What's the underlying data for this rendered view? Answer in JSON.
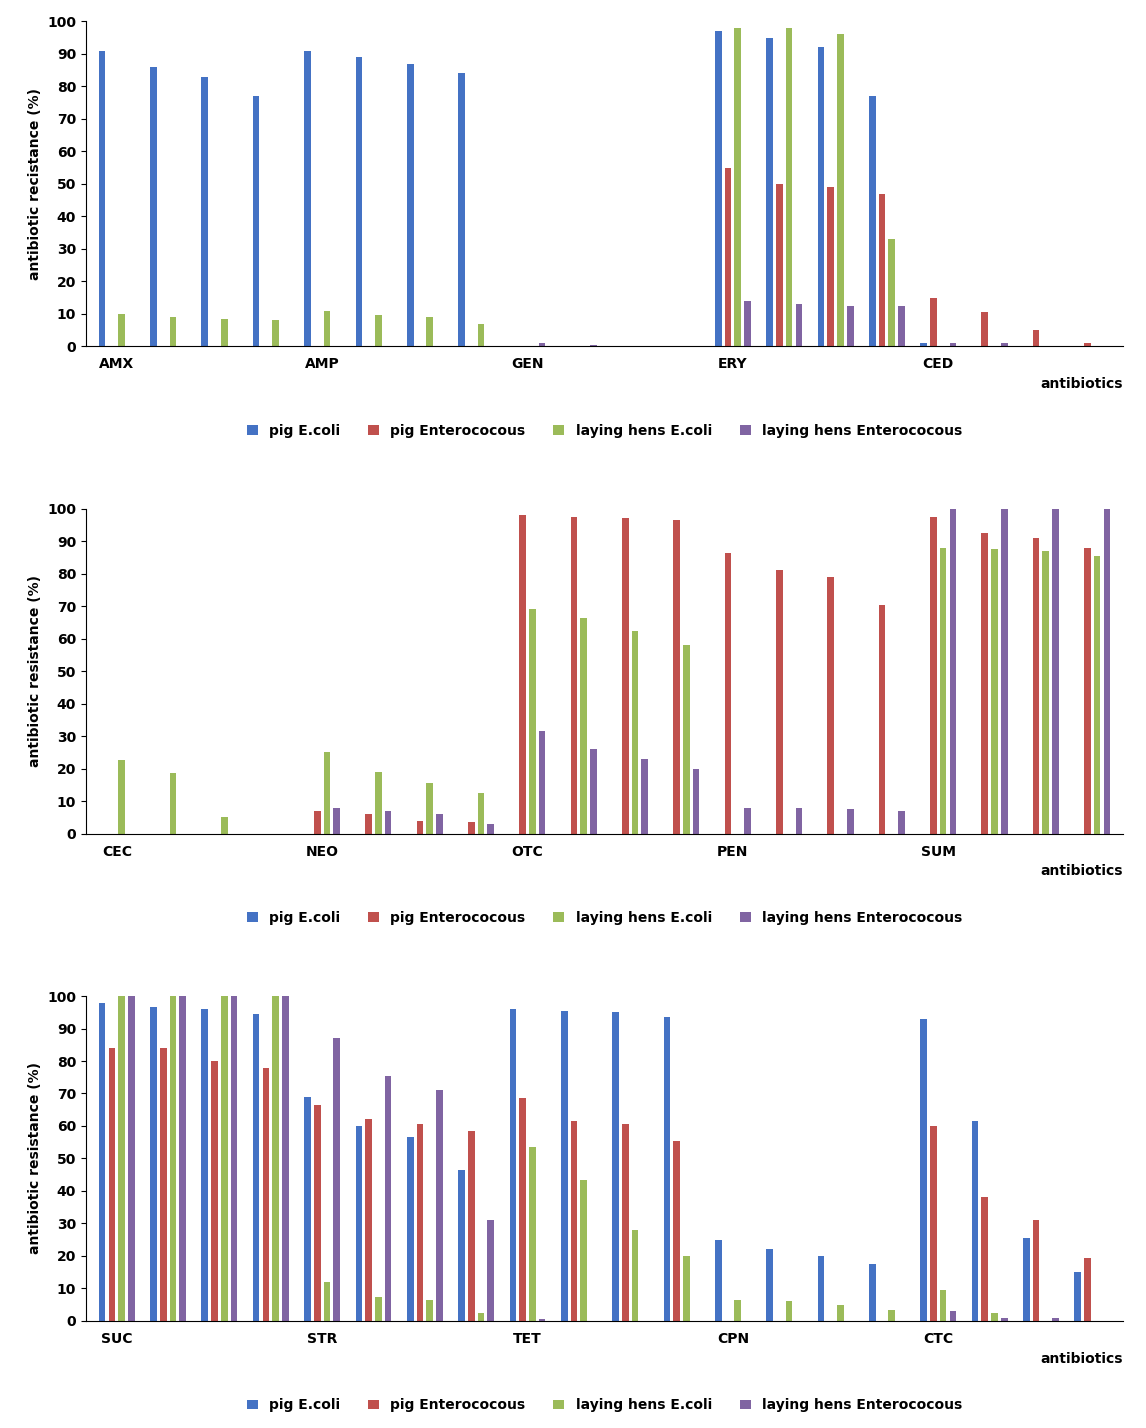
{
  "chart_data": [
    {
      "type": "bar",
      "y_label": "antibiotic recistance (%)",
      "x_label": "antibiotics",
      "categories": [
        "AMX",
        null,
        null,
        null,
        "AMP",
        null,
        null,
        null,
        "GEN",
        null,
        null,
        null,
        "ERY",
        null,
        null,
        null,
        "CED",
        null,
        null,
        null
      ],
      "ylim": [
        0,
        100
      ],
      "yticks": [
        0,
        10,
        20,
        30,
        40,
        50,
        60,
        70,
        80,
        90,
        100
      ],
      "grid": false,
      "legend": "bottom",
      "series": [
        {
          "name": "pig E.coli",
          "color": "#4472C4",
          "values": [
            91,
            86,
            83,
            77,
            91,
            89,
            87,
            84,
            0,
            0,
            0,
            0,
            97,
            95,
            92,
            77,
            1,
            0,
            0,
            0
          ]
        },
        {
          "name": "pig Enterococous",
          "color": "#C0504D",
          "values": [
            0,
            0,
            0,
            0,
            0,
            0,
            0,
            0,
            0,
            0,
            0,
            0,
            55,
            50,
            49,
            47,
            15,
            10.5,
            5,
            1
          ]
        },
        {
          "name": "laying hens E.coli",
          "color": "#9BBB59",
          "values": [
            10,
            9,
            8.5,
            8,
            11,
            9.5,
            9,
            7,
            0,
            0,
            0,
            0,
            98,
            98,
            96,
            33,
            0,
            0,
            0,
            0
          ]
        },
        {
          "name": "laying hens Enterococous",
          "color": "#8064A2",
          "values": [
            0,
            0,
            0,
            0,
            0,
            0,
            0,
            0,
            1,
            0.5,
            0,
            0,
            14,
            13,
            12.5,
            12.5,
            1,
            1,
            0,
            0
          ]
        }
      ]
    },
    {
      "type": "bar",
      "y_label": "antibiotic resistance (%)",
      "x_label": "antibiotics",
      "categories": [
        "CEC",
        null,
        null,
        null,
        "NEO",
        null,
        null,
        null,
        "OTC",
        null,
        null,
        null,
        "PEN",
        null,
        null,
        null,
        "SUM",
        null,
        null,
        null
      ],
      "ylim": [
        0,
        100
      ],
      "yticks": [
        0,
        10,
        20,
        30,
        40,
        50,
        60,
        70,
        80,
        90,
        100
      ],
      "grid": false,
      "legend": "bottom",
      "series": [
        {
          "name": "pig E.coli",
          "color": "#4472C4",
          "values": [
            0,
            0,
            0,
            0,
            0,
            0,
            0,
            0,
            0,
            0,
            0,
            0,
            0,
            0,
            0,
            0,
            0,
            0,
            0,
            0
          ]
        },
        {
          "name": "pig Enterococous",
          "color": "#C0504D",
          "values": [
            0,
            0,
            0,
            0,
            7,
            6,
            4,
            3.5,
            98,
            97.5,
            97,
            96.5,
            86.5,
            81,
            79,
            70.5,
            97.5,
            92.5,
            91,
            88
          ]
        },
        {
          "name": "laying hens E.coli",
          "color": "#9BBB59",
          "values": [
            22.5,
            18.5,
            5,
            0,
            25,
            19,
            15.5,
            12.5,
            69,
            66.5,
            62.5,
            58,
            0,
            0,
            0,
            0,
            88,
            87.5,
            87,
            85.5
          ]
        },
        {
          "name": "laying hens Enterococous",
          "color": "#8064A2",
          "values": [
            0,
            0,
            0,
            0,
            8,
            7,
            6,
            3,
            31.5,
            26,
            23,
            20,
            8,
            8,
            7.5,
            7,
            100,
            100,
            100,
            100
          ]
        }
      ]
    },
    {
      "type": "bar",
      "y_label": "antibiotic resistance (%)",
      "x_label": "antibiotics",
      "categories": [
        "SUC",
        null,
        null,
        null,
        "STR",
        null,
        null,
        null,
        "TET",
        null,
        null,
        null,
        "CPN",
        null,
        null,
        null,
        "CTC",
        null,
        null,
        null
      ],
      "ylim": [
        0,
        100
      ],
      "yticks": [
        0,
        10,
        20,
        30,
        40,
        50,
        60,
        70,
        80,
        90,
        100
      ],
      "grid": false,
      "legend": "bottom",
      "series": [
        {
          "name": "pig E.coli",
          "color": "#4472C4",
          "values": [
            98,
            96.5,
            96,
            94.5,
            69,
            60,
            56.5,
            46.5,
            96,
            95.5,
            95,
            93.5,
            25,
            22,
            20,
            17.5,
            93,
            61.5,
            25.5,
            15
          ]
        },
        {
          "name": "pig Enterococous",
          "color": "#C0504D",
          "values": [
            84,
            84,
            80,
            78,
            66.5,
            62,
            60.5,
            58.5,
            68.5,
            61.5,
            60.5,
            55.5,
            0,
            0,
            0,
            0,
            60,
            38,
            31,
            19.5
          ]
        },
        {
          "name": "laying hens E.coli",
          "color": "#9BBB59",
          "values": [
            100,
            100,
            100,
            100,
            12,
            7.5,
            6.5,
            2.5,
            53.5,
            43.5,
            28,
            20,
            6.5,
            6,
            5,
            3.5,
            9.5,
            2.5,
            0,
            0
          ]
        },
        {
          "name": "laying hens Enterococous",
          "color": "#8064A2",
          "values": [
            100,
            100,
            100,
            100,
            87,
            75.5,
            71,
            31,
            0.5,
            0,
            0,
            0,
            0,
            0,
            0,
            0,
            3,
            1,
            1,
            0
          ]
        }
      ]
    }
  ]
}
